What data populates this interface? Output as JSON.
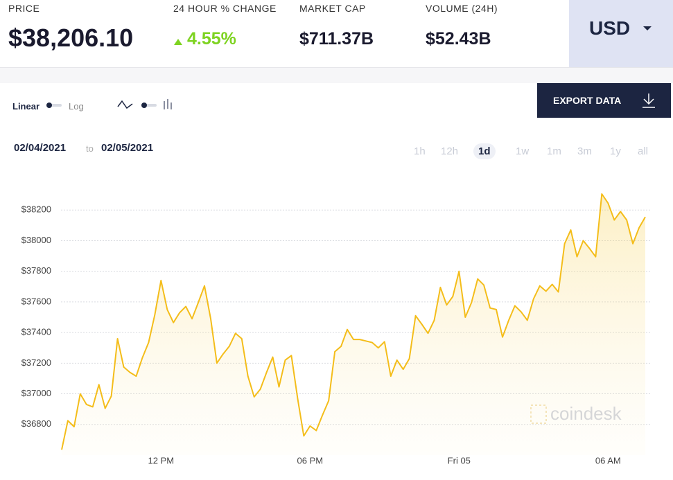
{
  "header": {
    "price": {
      "label": "PRICE",
      "value": "$38,206.10"
    },
    "change": {
      "label": "24 HOUR % CHANGE",
      "value": "4.55%"
    },
    "market_cap": {
      "label": "MARKET CAP",
      "value": "$711.37B"
    },
    "volume": {
      "label": "VOLUME (24H)",
      "value": "$52.43B"
    },
    "currency": "USD"
  },
  "controls": {
    "scale": [
      "Linear",
      "Log"
    ],
    "export": "EXPORT DATA",
    "date_from": "02/04/2021",
    "date_sep": "to",
    "date_to": "02/05/2021",
    "ranges": [
      "1h",
      "12h",
      "1d",
      "1w",
      "1m",
      "3m",
      "1y",
      "all"
    ],
    "selected_range": 2
  },
  "chart_data": {
    "type": "area",
    "color": "#f4bd1a",
    "grid": true,
    "watermark": "coindesk",
    "x": [
      8,
      8.25,
      8.5,
      8.75,
      9,
      9.25,
      9.5,
      9.75,
      10,
      10.25,
      10.5,
      10.75,
      11,
      11.25,
      11.5,
      11.75,
      12,
      12.25,
      12.5,
      12.75,
      13,
      13.25,
      13.5,
      13.75,
      14,
      14.25,
      14.5,
      14.75,
      15,
      15.25,
      15.5,
      15.75,
      16,
      16.25,
      16.5,
      16.75,
      17,
      17.25,
      17.5,
      17.75,
      18,
      18.25,
      18.5,
      18.75,
      19,
      19.25,
      19.5,
      19.75,
      20,
      20.25,
      20.5,
      20.75,
      21,
      21.25,
      21.5,
      21.75,
      22,
      22.25,
      22.5,
      22.75,
      23,
      23.25,
      23.5,
      23.75,
      24,
      24.25,
      24.5,
      24.75,
      25,
      25.25,
      25.5,
      25.75,
      26,
      26.25,
      26.5,
      26.75,
      27,
      27.25,
      27.5,
      27.75,
      28,
      28.25,
      28.5,
      28.75,
      29,
      29.25,
      29.5,
      29.75,
      30,
      30.25,
      30.5,
      30.75,
      31,
      31.25,
      31.5
    ],
    "values": [
      36635,
      36825,
      36785,
      37000,
      36930,
      36915,
      37060,
      36905,
      36985,
      37360,
      37175,
      37140,
      37115,
      37235,
      37335,
      37515,
      37740,
      37550,
      37465,
      37530,
      37570,
      37490,
      37595,
      37705,
      37490,
      37200,
      37260,
      37310,
      37395,
      37360,
      37115,
      36980,
      37030,
      37140,
      37240,
      37045,
      37220,
      37250,
      36970,
      36725,
      36790,
      36760,
      36860,
      36955,
      37275,
      37310,
      37420,
      37355,
      37355,
      37345,
      37335,
      37300,
      37340,
      37115,
      37220,
      37160,
      37230,
      37510,
      37455,
      37395,
      37480,
      37695,
      37580,
      37635,
      37800,
      37500,
      37595,
      37750,
      37710,
      37560,
      37550,
      37370,
      37480,
      37575,
      37535,
      37480,
      37620,
      37705,
      37670,
      37715,
      37665,
      37980,
      38070,
      37895,
      38000,
      37950,
      37895,
      38305,
      38245,
      38135,
      38190,
      38135,
      37980,
      38085,
      38155
    ],
    "xlim": [
      7.75,
      31.75
    ],
    "xticks": [
      {
        "value": 12,
        "label": "12 PM"
      },
      {
        "value": 18,
        "label": "06 PM"
      },
      {
        "value": 24,
        "label": "Fri 05"
      },
      {
        "value": 30,
        "label": "06 AM"
      }
    ],
    "ylim": [
      36600,
      38400
    ],
    "yticks": [
      {
        "value": 36800,
        "label": "$36800"
      },
      {
        "value": 37000,
        "label": "$37000"
      },
      {
        "value": 37200,
        "label": "$37200"
      },
      {
        "value": 37400,
        "label": "$37400"
      },
      {
        "value": 37600,
        "label": "$37600"
      },
      {
        "value": 37800,
        "label": "$37800"
      },
      {
        "value": 38000,
        "label": "$38000"
      },
      {
        "value": 38200,
        "label": "$38200"
      }
    ]
  }
}
